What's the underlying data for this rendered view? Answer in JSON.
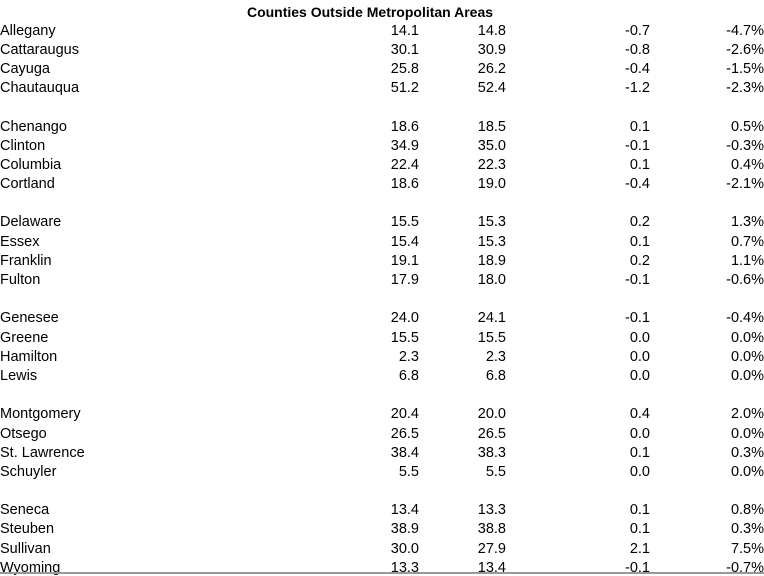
{
  "title": "Counties Outside Metropolitan Areas",
  "colors": {
    "background": "#ffffff",
    "text": "#000000",
    "bottom_rule": "#999999"
  },
  "table": {
    "groups": [
      [
        {
          "county": "Allegany",
          "values": [
            "14.1",
            "14.8",
            "-0.7",
            "-4.7%"
          ]
        },
        {
          "county": "Cattaraugus",
          "values": [
            "30.1",
            "30.9",
            "-0.8",
            "-2.6%"
          ]
        },
        {
          "county": "Cayuga",
          "values": [
            "25.8",
            "26.2",
            "-0.4",
            "-1.5%"
          ]
        },
        {
          "county": "Chautauqua",
          "values": [
            "51.2",
            "52.4",
            "-1.2",
            "-2.3%"
          ]
        }
      ],
      [
        {
          "county": "Chenango",
          "values": [
            "18.6",
            "18.5",
            "0.1",
            "0.5%"
          ]
        },
        {
          "county": "Clinton",
          "values": [
            "34.9",
            "35.0",
            "-0.1",
            "-0.3%"
          ]
        },
        {
          "county": "Columbia",
          "values": [
            "22.4",
            "22.3",
            "0.1",
            "0.4%"
          ]
        },
        {
          "county": "Cortland",
          "values": [
            "18.6",
            "19.0",
            "-0.4",
            "-2.1%"
          ]
        }
      ],
      [
        {
          "county": "Delaware",
          "values": [
            "15.5",
            "15.3",
            "0.2",
            "1.3%"
          ]
        },
        {
          "county": "Essex",
          "values": [
            "15.4",
            "15.3",
            "0.1",
            "0.7%"
          ]
        },
        {
          "county": "Franklin",
          "values": [
            "19.1",
            "18.9",
            "0.2",
            "1.1%"
          ]
        },
        {
          "county": "Fulton",
          "values": [
            "17.9",
            "18.0",
            "-0.1",
            "-0.6%"
          ]
        }
      ],
      [
        {
          "county": "Genesee",
          "values": [
            "24.0",
            "24.1",
            "-0.1",
            "-0.4%"
          ]
        },
        {
          "county": "Greene",
          "values": [
            "15.5",
            "15.5",
            "0.0",
            "0.0%"
          ]
        },
        {
          "county": "Hamilton",
          "values": [
            "2.3",
            "2.3",
            "0.0",
            "0.0%"
          ]
        },
        {
          "county": "Lewis",
          "values": [
            "6.8",
            "6.8",
            "0.0",
            "0.0%"
          ]
        }
      ],
      [
        {
          "county": "Montgomery",
          "values": [
            "20.4",
            "20.0",
            "0.4",
            "2.0%"
          ]
        },
        {
          "county": "Otsego",
          "values": [
            "26.5",
            "26.5",
            "0.0",
            "0.0%"
          ]
        },
        {
          "county": "St. Lawrence",
          "values": [
            "38.4",
            "38.3",
            "0.1",
            "0.3%"
          ]
        },
        {
          "county": "Schuyler",
          "values": [
            "5.5",
            "5.5",
            "0.0",
            "0.0%"
          ]
        }
      ],
      [
        {
          "county": "Seneca",
          "values": [
            "13.4",
            "13.3",
            "0.1",
            "0.8%"
          ]
        },
        {
          "county": "Steuben",
          "values": [
            "38.9",
            "38.8",
            "0.1",
            "0.3%"
          ]
        },
        {
          "county": "Sullivan",
          "values": [
            "30.0",
            "27.9",
            "2.1",
            "7.5%"
          ]
        },
        {
          "county": "Wyoming",
          "values": [
            "13.3",
            "13.4",
            "-0.1",
            "-0.7%"
          ]
        }
      ]
    ]
  }
}
